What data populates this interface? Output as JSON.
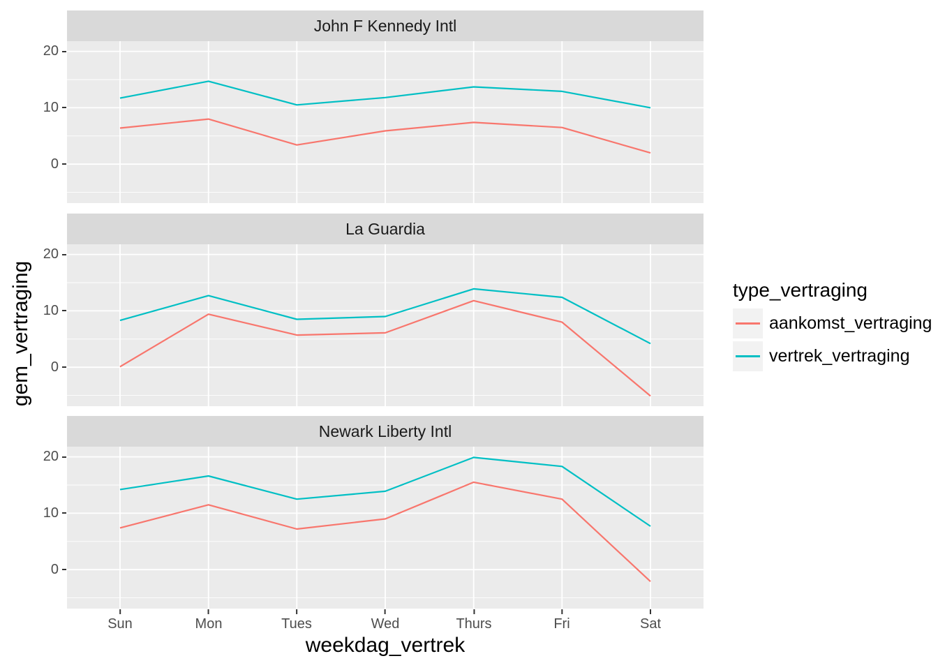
{
  "chart_data": {
    "type": "line",
    "categories": [
      "Sun",
      "Mon",
      "Tues",
      "Wed",
      "Thurs",
      "Fri",
      "Sat"
    ],
    "xlabel": "weekdag_vertrek",
    "ylabel": "gem_vertraging",
    "legend_title": "type_vertraging",
    "legend_position": "right",
    "grid": true,
    "ylim": [
      -6.9,
      21.8
    ],
    "y_ticks": [
      0,
      10,
      20
    ],
    "y_minor_ticks": [
      -5,
      5,
      15
    ],
    "y_tick_labels": [
      "20",
      "10",
      "0"
    ],
    "series_info": [
      {
        "name": "aankomst_vertraging",
        "color": "#F8766D"
      },
      {
        "name": "vertrek_vertraging",
        "color": "#00BFC4"
      }
    ],
    "facets": [
      {
        "title": "John F Kennedy Intl",
        "series": [
          {
            "name": "aankomst_vertraging",
            "values": [
              6.4,
              8.0,
              3.4,
              5.9,
              7.4,
              6.5,
              2.0
            ]
          },
          {
            "name": "vertrek_vertraging",
            "values": [
              11.7,
              14.7,
              10.5,
              11.8,
              13.7,
              12.9,
              10.0
            ]
          }
        ]
      },
      {
        "title": "La Guardia",
        "series": [
          {
            "name": "aankomst_vertraging",
            "values": [
              0.1,
              9.4,
              5.7,
              6.1,
              11.8,
              8.0,
              -5.1
            ]
          },
          {
            "name": "vertrek_vertraging",
            "values": [
              8.3,
              12.7,
              8.5,
              9.0,
              13.9,
              12.4,
              4.2
            ]
          }
        ]
      },
      {
        "title": "Newark Liberty Intl",
        "series": [
          {
            "name": "aankomst_vertraging",
            "values": [
              7.4,
              11.5,
              7.2,
              9.0,
              15.5,
              12.5,
              -2.1
            ]
          },
          {
            "name": "vertrek_vertraging",
            "values": [
              14.2,
              16.6,
              12.5,
              13.9,
              19.9,
              18.3,
              7.7
            ]
          }
        ]
      }
    ],
    "colors": {
      "panel_background": "#EBEBEB",
      "strip_background": "#D9D9D9",
      "grid": "#FFFFFF",
      "tick_text": "#4D4D4D",
      "axis_title": "#000000",
      "legend_key_background": "#F2F2F2"
    }
  }
}
